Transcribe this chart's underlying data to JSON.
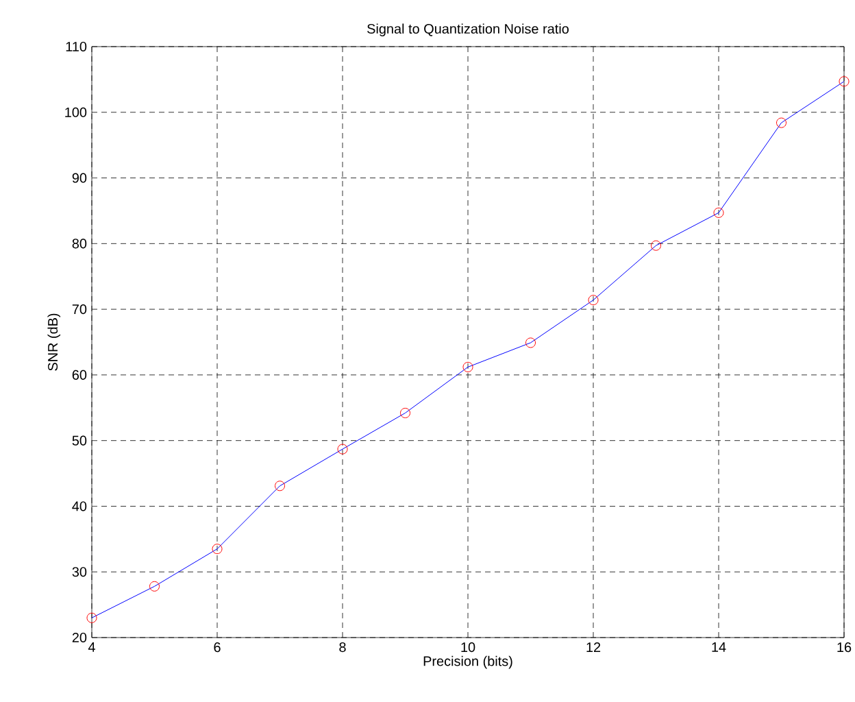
{
  "chart_data": {
    "type": "line",
    "title": "Signal to Quantization Noise ratio",
    "xlabel": "Precision (bits)",
    "ylabel": "SNR (dB)",
    "x": [
      4,
      5,
      6,
      7,
      8,
      9,
      10,
      11,
      12,
      13,
      14,
      15,
      16
    ],
    "series": [
      {
        "color": "#0000ff",
        "values": [
          23.0,
          27.8,
          33.5,
          43.1,
          48.7,
          54.2,
          61.2,
          64.9,
          71.4,
          79.7,
          84.7,
          98.4,
          104.7
        ]
      }
    ],
    "xlim": [
      4,
      16
    ],
    "ylim": [
      20,
      110
    ],
    "xticks": [
      4,
      6,
      8,
      10,
      12,
      14,
      16
    ],
    "yticks": [
      20,
      30,
      40,
      50,
      60,
      70,
      80,
      90,
      100,
      110
    ],
    "grid": true,
    "marker": "circle",
    "line_style": "solid"
  }
}
